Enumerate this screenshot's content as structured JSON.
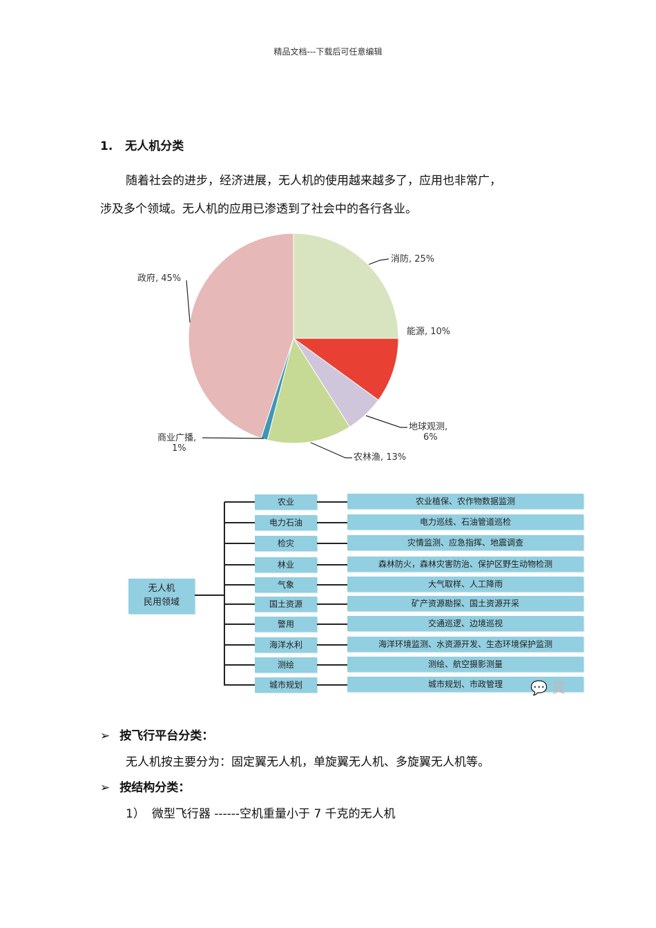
{
  "header": "精品文档---下载后可任意编辑",
  "heading": {
    "number": "1.",
    "title": "无人机分类"
  },
  "paragraph": {
    "line1": "随着社会的进步，经济进展，无人机的使用越来越多了，应用也非常广，",
    "line2": "涉及多个领域。无人机的应用已渗透到了社会中的各行各业。"
  },
  "chart_data": {
    "type": "pie",
    "slices": [
      {
        "name": "消防",
        "value": 25,
        "label": "消防, 25%",
        "color": "#d8e4bf"
      },
      {
        "name": "能源",
        "value": 10,
        "label": "能源, 10%",
        "color": "#e84033"
      },
      {
        "name": "地球观测",
        "value": 6,
        "label": "地球观测,",
        "label2": "6%",
        "color": "#cfc6dc"
      },
      {
        "name": "农林渔",
        "value": 13,
        "label": "农林渔, 13%",
        "color": "#c6da95"
      },
      {
        "name": "商业广播",
        "value": 1,
        "label": "商业广播,",
        "label2": "1%",
        "color": "#3d97b5"
      },
      {
        "name": "政府",
        "value": 45,
        "label": "政府, 45%",
        "color": "#e6b8b8"
      }
    ]
  },
  "diagram": {
    "root": {
      "line1": "无人机",
      "line2": "民用领域"
    },
    "color": "#92cfe0",
    "rows": [
      {
        "category": "农业",
        "detail": "农业植保、农作物数据监测"
      },
      {
        "category": "电力石油",
        "detail": "电力巡线、石油管道巡检"
      },
      {
        "category": "检灾",
        "detail": "灾情监测、应急指挥、地震调查"
      },
      {
        "category": "林业",
        "detail": "森林防火，森林灾害防治、保护区野生动物检测"
      },
      {
        "category": "气象",
        "detail": "大气取样、人工降雨"
      },
      {
        "category": "国土资源",
        "detail": "矿产资源勘探、国土资源开采"
      },
      {
        "category": "警用",
        "detail": "交通巡逻、边境巡视"
      },
      {
        "category": "海洋水利",
        "detail": "海洋环境监测、水资源开发、生态环境保护监测"
      },
      {
        "category": "测绘",
        "detail": "测绘、航空摄影测量"
      },
      {
        "category": "城市规划",
        "detail": "城市规划、市政管理"
      }
    ],
    "watermark": "翼"
  },
  "sections": [
    {
      "bullet": "➢",
      "title": "按飞行平台分类：",
      "text": "无人机按主要分为：固定翼无人机，单旋翼无人机、多旋翼无人机等。"
    },
    {
      "bullet": "➢",
      "title": "按结构分类：",
      "item_num": "1）",
      "item_text": "微型飞行器 ------空机重量小于 7 千克的无人机"
    }
  ]
}
